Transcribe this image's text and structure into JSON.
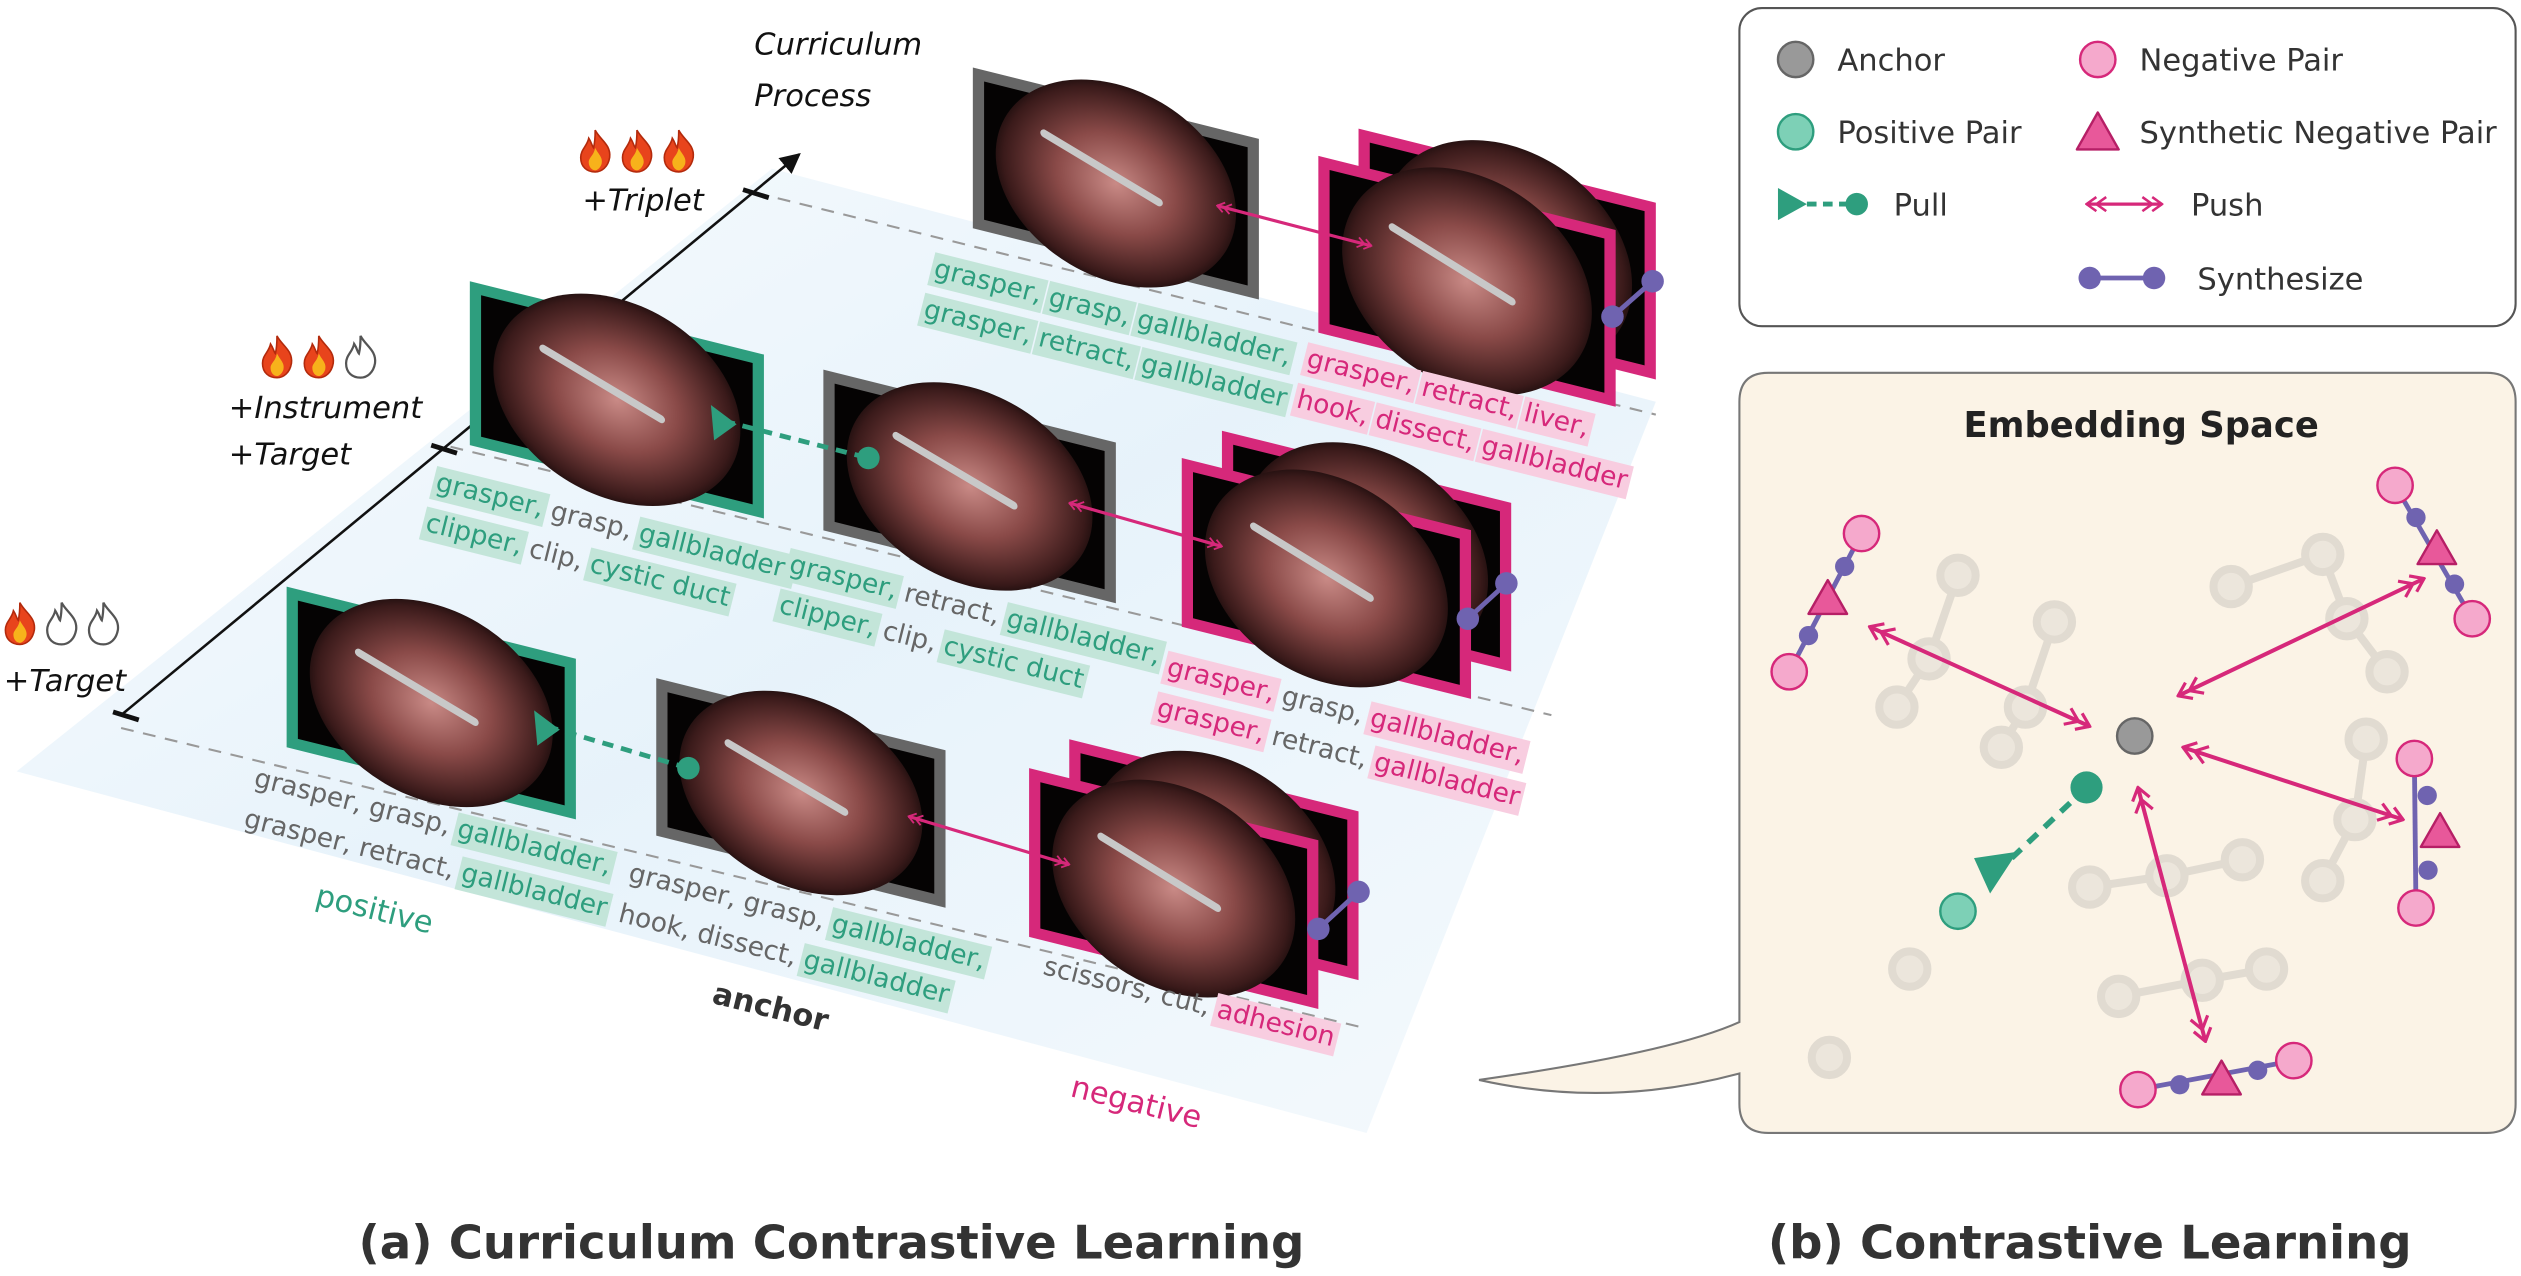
{
  "panel_a": {
    "caption": "(a) Curriculum Contrastive Learning",
    "axis_label": [
      "Curriculum",
      "Process"
    ],
    "stages": [
      {
        "labels": [
          "+Triplet"
        ]
      },
      {
        "labels": [
          "+Instrument",
          "+Target"
        ]
      },
      {
        "labels": [
          "+Target"
        ]
      }
    ],
    "column_labels": {
      "positive": "positive",
      "anchor": "anchor",
      "negative": "negative"
    },
    "rows": [
      {
        "anchor": {
          "lines": [
            [
              {
                "text": "grasper,",
                "highlight": true
              },
              {
                "text": "grasp,",
                "highlight": true
              },
              {
                "text": "gallbladder,",
                "highlight": true
              }
            ],
            [
              {
                "text": "grasper,",
                "highlight": true
              },
              {
                "text": "retract,",
                "highlight": true
              },
              {
                "text": "gallbladder",
                "highlight": true
              }
            ]
          ]
        },
        "negative": {
          "lines": [
            [
              {
                "text": "grasper,",
                "highlight": true
              },
              {
                "text": "retract,",
                "highlight": true
              },
              {
                "text": "liver,",
                "highlight": true
              }
            ],
            [
              {
                "text": "hook,",
                "highlight": true
              },
              {
                "text": "dissect,",
                "highlight": true
              },
              {
                "text": "gallbladder",
                "highlight": true
              }
            ]
          ]
        }
      },
      {
        "positive": {
          "lines": [
            [
              {
                "text": "grasper,",
                "highlight": true
              },
              "grasp,",
              {
                "text": "gallbladder,",
                "highlight": true
              }
            ],
            [
              {
                "text": "clipper,",
                "highlight": true
              },
              "clip,",
              {
                "text": "cystic duct",
                "highlight": true
              }
            ]
          ]
        },
        "anchor": {
          "lines": [
            [
              {
                "text": "grasper,",
                "highlight": true
              },
              "retract,",
              {
                "text": "gallbladder,",
                "highlight": true
              }
            ],
            [
              {
                "text": "clipper,",
                "highlight": true
              },
              "clip,",
              {
                "text": "cystic duct",
                "highlight": true
              }
            ]
          ]
        },
        "negative": {
          "lines": [
            [
              {
                "text": "grasper,",
                "highlight": true
              },
              "grasp,",
              {
                "text": "gallbladder,",
                "highlight": true
              }
            ],
            [
              {
                "text": "grasper,",
                "highlight": true
              },
              "retract,",
              {
                "text": "gallbladder",
                "highlight": true
              }
            ]
          ]
        }
      },
      {
        "positive": {
          "lines": [
            [
              "grasper,",
              "grasp,",
              {
                "text": "gallbladder,",
                "highlight": true
              }
            ],
            [
              "grasper,",
              "retract,",
              {
                "text": "gallbladder",
                "highlight": true
              }
            ]
          ]
        },
        "anchor": {
          "lines": [
            [
              "grasper,",
              "grasp,",
              {
                "text": "gallbladder,",
                "highlight": true
              }
            ],
            [
              "hook,",
              "dissect,",
              {
                "text": "gallbladder",
                "highlight": true
              }
            ]
          ]
        },
        "negative": {
          "lines": [
            [
              "scissors,",
              "cut,",
              {
                "text": "adhesion",
                "highlight": true
              }
            ]
          ]
        }
      }
    ]
  },
  "legend": {
    "items": [
      "Anchor",
      "Negative Pair",
      "Positive Pair",
      "Synthetic Negative Pair",
      "Pull",
      "Push",
      "Synthesize"
    ]
  },
  "panel_b": {
    "title": "Embedding Space",
    "caption": "(b) Contrastive Learning"
  }
}
